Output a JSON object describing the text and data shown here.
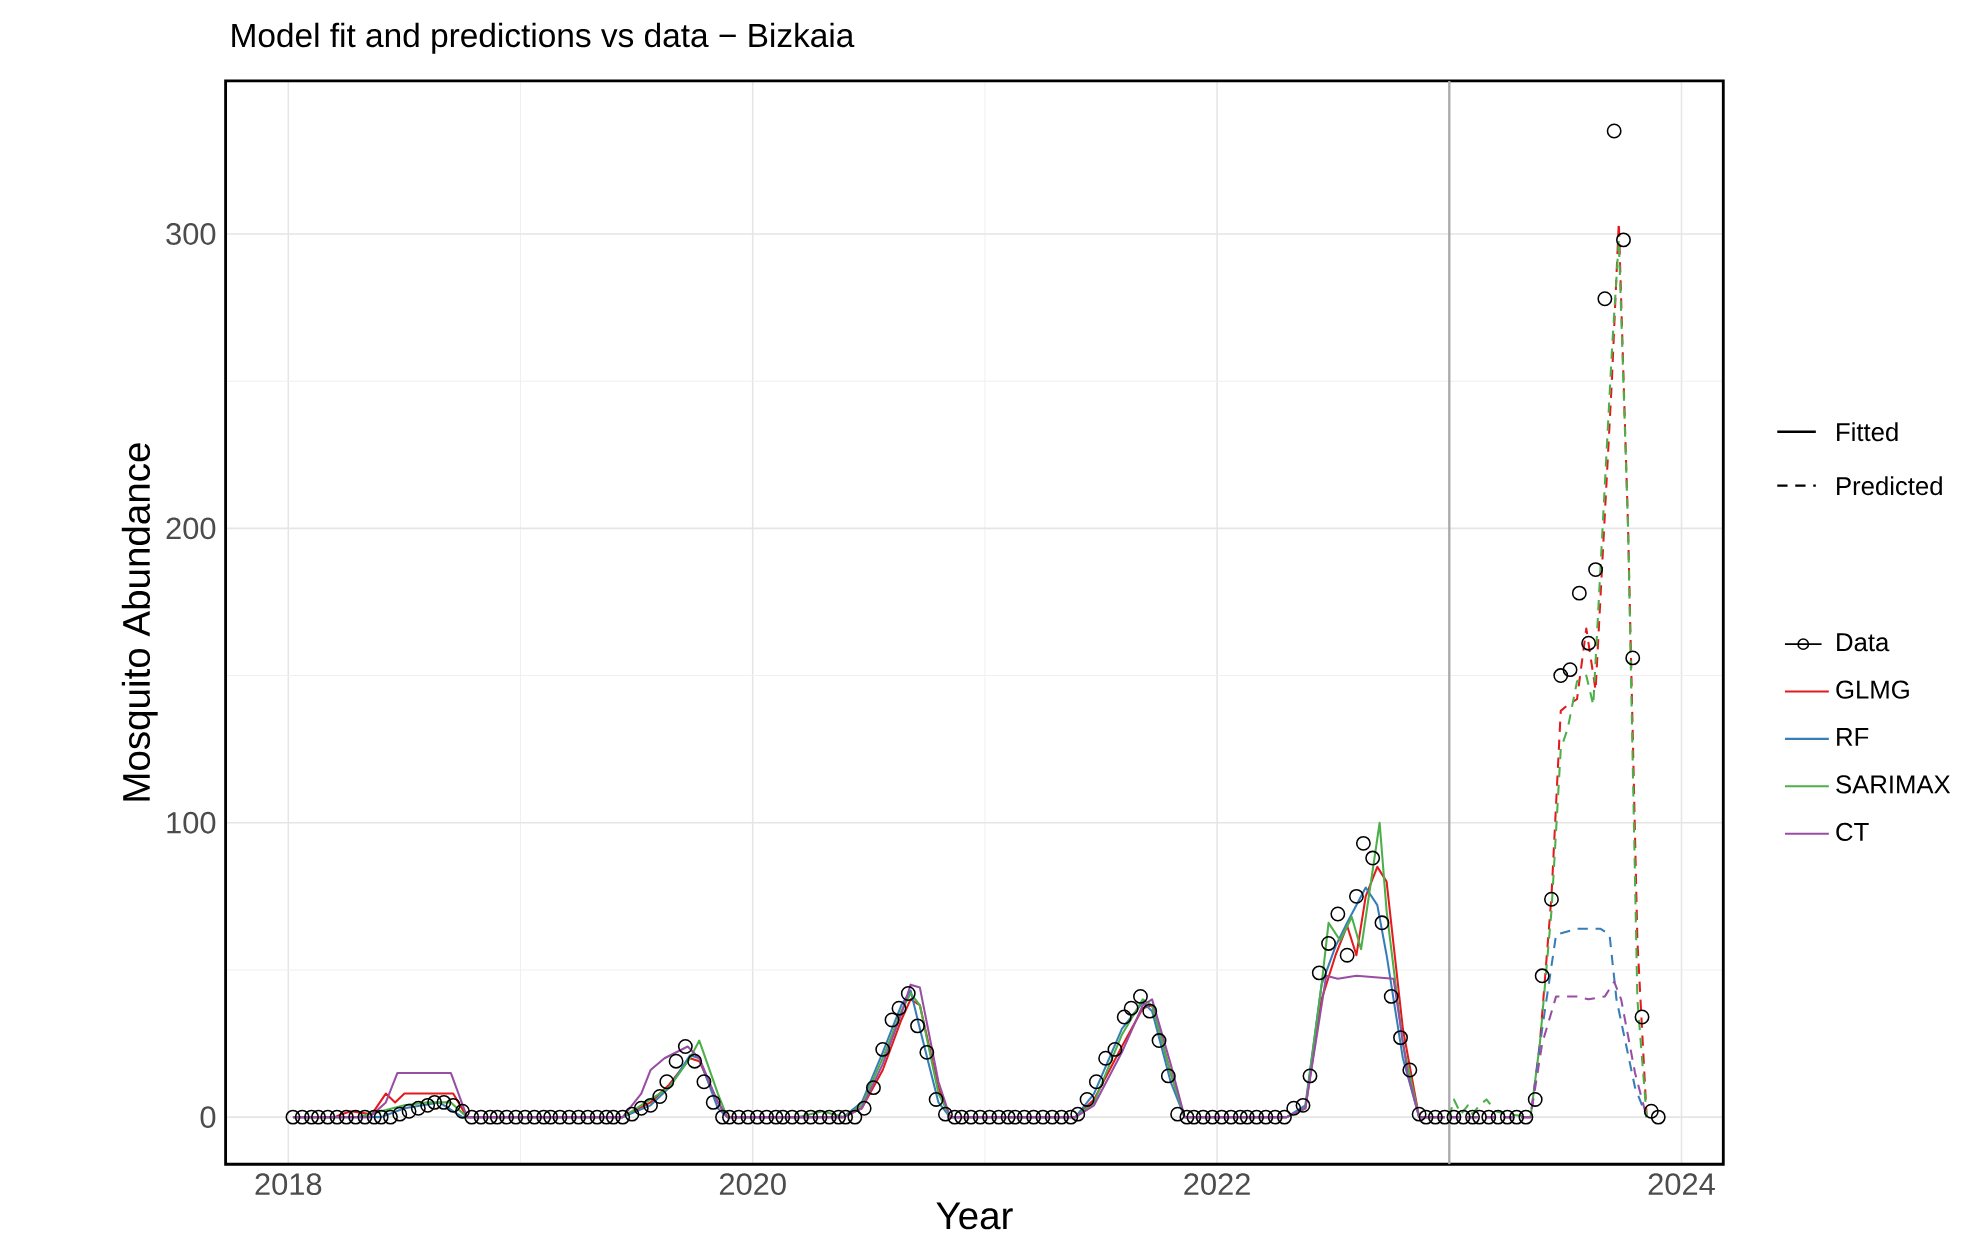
{
  "chart_data": {
    "type": "line",
    "title": "Model fit and predictions vs data − Bizkaia",
    "xlabel": "Year",
    "ylabel": "Mosquito Abundance",
    "xlim": [
      2017.73,
      2024.18
    ],
    "ylim": [
      -16,
      352
    ],
    "xticks": [
      2018,
      2020,
      2022,
      2024
    ],
    "yticks": [
      0,
      100,
      200,
      300
    ],
    "grid": true,
    "legend": "right",
    "annotations": [
      "Fitted",
      "Predicted"
    ],
    "ref_lines": [
      {
        "axis": "x",
        "value": 2023,
        "color": "#aaaaaa"
      }
    ],
    "series": [
      {
        "name": "Data",
        "type": "scatter",
        "marker": "circle",
        "color": "#000000",
        "x": [
          2018.02,
          2018.06,
          2018.1,
          2018.13,
          2018.17,
          2018.21,
          2018.25,
          2018.29,
          2018.33,
          2018.37,
          2018.4,
          2018.44,
          2018.48,
          2018.52,
          2018.56,
          2018.6,
          2018.63,
          2018.67,
          2018.71,
          2018.75,
          2018.79,
          2018.83,
          2018.87,
          2018.9,
          2018.94,
          2018.98,
          2019.02,
          2019.06,
          2019.1,
          2019.13,
          2019.17,
          2019.21,
          2019.25,
          2019.29,
          2019.33,
          2019.37,
          2019.4,
          2019.44,
          2019.48,
          2019.52,
          2019.56,
          2019.6,
          2019.63,
          2019.67,
          2019.71,
          2019.75,
          2019.79,
          2019.83,
          2019.87,
          2019.9,
          2019.94,
          2019.98,
          2020.02,
          2020.06,
          2020.1,
          2020.13,
          2020.17,
          2020.21,
          2020.25,
          2020.29,
          2020.33,
          2020.37,
          2020.4,
          2020.44,
          2020.48,
          2020.52,
          2020.56,
          2020.6,
          2020.63,
          2020.67,
          2020.71,
          2020.75,
          2020.79,
          2020.83,
          2020.87,
          2020.9,
          2020.94,
          2020.98,
          2021.02,
          2021.06,
          2021.1,
          2021.13,
          2021.17,
          2021.21,
          2021.25,
          2021.29,
          2021.33,
          2021.37,
          2021.4,
          2021.44,
          2021.48,
          2021.52,
          2021.56,
          2021.6,
          2021.63,
          2021.67,
          2021.71,
          2021.75,
          2021.79,
          2021.83,
          2021.87,
          2021.9,
          2021.94,
          2021.98,
          2022.02,
          2022.06,
          2022.1,
          2022.13,
          2022.17,
          2022.21,
          2022.25,
          2022.29,
          2022.33,
          2022.37,
          2022.4,
          2022.44,
          2022.48,
          2022.52,
          2022.56,
          2022.6,
          2022.63,
          2022.67,
          2022.71,
          2022.75,
          2022.79,
          2022.83,
          2022.87,
          2022.9,
          2022.94,
          2022.98,
          2023.02,
          2023.06,
          2023.1,
          2023.13,
          2023.17,
          2023.21,
          2023.25,
          2023.29,
          2023.33,
          2023.37,
          2023.4,
          2023.44,
          2023.48,
          2023.52,
          2023.56,
          2023.6,
          2023.63,
          2023.67,
          2023.71,
          2023.75,
          2023.79,
          2023.83,
          2023.87,
          2023.9
        ],
        "values": [
          0,
          0,
          0,
          0,
          0,
          0,
          0,
          0,
          0,
          0,
          0,
          0,
          1,
          2,
          3,
          4,
          5,
          5,
          4,
          2,
          0,
          0,
          0,
          0,
          0,
          0,
          0,
          0,
          0,
          0,
          0,
          0,
          0,
          0,
          0,
          0,
          0,
          0,
          1,
          3,
          4,
          7,
          12,
          19,
          24,
          19,
          12,
          5,
          0,
          0,
          0,
          0,
          0,
          0,
          0,
          0,
          0,
          0,
          0,
          0,
          0,
          0,
          0,
          0,
          3,
          10,
          23,
          33,
          37,
          42,
          31,
          22,
          6,
          1,
          0,
          0,
          0,
          0,
          0,
          0,
          0,
          0,
          0,
          0,
          0,
          0,
          0,
          0,
          1,
          6,
          12,
          20,
          23,
          34,
          37,
          41,
          36,
          26,
          14,
          1,
          0,
          0,
          0,
          0,
          0,
          0,
          0,
          0,
          0,
          0,
          0,
          0,
          3,
          4,
          14,
          49,
          59,
          69,
          55,
          75,
          93,
          88,
          66,
          41,
          27,
          16,
          1,
          0,
          0,
          0,
          0,
          0,
          0,
          0,
          0,
          0,
          0,
          0,
          0,
          6,
          48,
          74,
          150,
          152,
          178,
          161,
          186,
          278,
          335,
          298,
          156,
          34,
          2,
          0
        ]
      },
      {
        "name": "GLMG",
        "line_style": "solid",
        "color": "#e41a1c",
        "x": [
          2018.02,
          2018.2,
          2018.23,
          2018.27,
          2018.36,
          2018.42,
          2018.46,
          2018.5,
          2018.61,
          2018.71,
          2018.77,
          2019.44,
          2019.56,
          2019.64,
          2019.73,
          2019.77,
          2019.85,
          2019.89,
          2020.39,
          2020.47,
          2020.56,
          2020.64,
          2020.68,
          2020.72,
          2020.8,
          2020.85,
          2021.39,
          2021.47,
          2021.59,
          2021.68,
          2021.72,
          2021.8,
          2021.86,
          2022.3,
          2022.38,
          2022.45,
          2022.51,
          2022.56,
          2022.6,
          2022.64,
          2022.69,
          2022.73,
          2022.8,
          2022.87,
          2022.98
        ],
        "values": [
          0,
          0,
          1,
          2,
          1,
          8,
          5,
          8,
          8,
          8,
          0,
          0,
          5,
          11,
          20,
          19,
          5,
          0,
          0,
          3,
          16,
          33,
          40,
          38,
          10,
          0,
          0,
          6,
          24,
          37,
          38,
          15,
          0,
          0,
          3,
          40,
          55,
          65,
          55,
          75,
          85,
          80,
          30,
          0,
          0
        ]
      },
      {
        "name": "RF",
        "line_style": "solid",
        "color": "#377eb8",
        "x": [
          2018.02,
          2018.4,
          2018.5,
          2018.65,
          2018.75,
          2019.44,
          2019.56,
          2019.64,
          2019.73,
          2019.77,
          2019.85,
          2019.89,
          2020.39,
          2020.47,
          2020.56,
          2020.64,
          2020.68,
          2020.72,
          2020.8,
          2020.85,
          2021.39,
          2021.47,
          2021.59,
          2021.68,
          2021.72,
          2021.8,
          2021.86,
          2022.3,
          2022.38,
          2022.45,
          2022.51,
          2022.56,
          2022.64,
          2022.69,
          2022.73,
          2022.8,
          2022.87,
          2022.98
        ],
        "values": [
          0,
          0,
          3,
          5,
          0,
          0,
          4,
          10,
          21,
          20,
          3,
          0,
          0,
          5,
          22,
          38,
          43,
          30,
          5,
          0,
          0,
          8,
          30,
          39,
          36,
          12,
          0,
          0,
          4,
          45,
          58,
          66,
          78,
          72,
          55,
          20,
          0,
          0
        ]
      },
      {
        "name": "SARIMAX",
        "line_style": "solid",
        "color": "#4daf4a",
        "x": [
          2018.02,
          2018.3,
          2018.4,
          2018.5,
          2018.6,
          2018.7,
          2018.77,
          2019.44,
          2019.56,
          2019.64,
          2019.73,
          2019.77,
          2019.85,
          2019.89,
          2020.2,
          2020.3,
          2020.39,
          2020.47,
          2020.56,
          2020.64,
          2020.68,
          2020.72,
          2020.8,
          2020.85,
          2021.39,
          2021.47,
          2021.59,
          2021.68,
          2021.72,
          2021.8,
          2021.86,
          2022.3,
          2022.38,
          2022.45,
          2022.48,
          2022.53,
          2022.58,
          2022.62,
          2022.7,
          2022.73,
          2022.8,
          2022.87,
          2022.98
        ],
        "values": [
          0,
          0,
          2,
          4,
          5,
          5,
          0,
          0,
          6,
          10,
          20,
          26,
          8,
          0,
          0,
          2,
          0,
          4,
          20,
          36,
          42,
          38,
          8,
          0,
          0,
          5,
          28,
          40,
          38,
          15,
          0,
          0,
          3,
          45,
          66,
          60,
          68,
          57,
          100,
          70,
          25,
          0,
          0
        ]
      },
      {
        "name": "CT",
        "line_style": "solid",
        "color": "#984ea3",
        "x": [
          2018.02,
          2018.35,
          2018.42,
          2018.47,
          2018.7,
          2018.77,
          2019.44,
          2019.52,
          2019.56,
          2019.62,
          2019.72,
          2019.77,
          2019.85,
          2019.89,
          2020.39,
          2020.47,
          2020.56,
          2020.64,
          2020.68,
          2020.72,
          2020.8,
          2020.85,
          2021.39,
          2021.47,
          2021.59,
          2021.68,
          2021.72,
          2021.8,
          2021.86,
          2022.3,
          2022.38,
          2022.47,
          2022.52,
          2022.6,
          2022.76,
          2022.82,
          2022.87,
          2022.98
        ],
        "values": [
          0,
          0,
          5,
          15,
          15,
          0,
          0,
          8,
          16,
          20,
          24,
          20,
          5,
          0,
          0,
          3,
          18,
          35,
          45,
          44,
          12,
          0,
          0,
          4,
          22,
          38,
          40,
          18,
          0,
          0,
          3,
          48,
          47,
          48,
          47,
          15,
          0,
          0
        ]
      },
      {
        "line_style": "dashed",
        "color": "#e41a1c",
        "x": [
          2023.0,
          2023.35,
          2023.39,
          2023.44,
          2023.48,
          2023.51,
          2023.55,
          2023.59,
          2023.63,
          2023.7,
          2023.73,
          2023.77,
          2023.81,
          2023.85
        ],
        "values": [
          0,
          0,
          25,
          75,
          138,
          140,
          142,
          166,
          145,
          250,
          304,
          200,
          60,
          0
        ]
      },
      {
        "line_style": "dashed",
        "color": "#377eb8",
        "x": [
          2023.0,
          2023.35,
          2023.4,
          2023.46,
          2023.55,
          2023.65,
          2023.69,
          2023.72,
          2023.8,
          2023.85
        ],
        "values": [
          0,
          0,
          30,
          62,
          64,
          64,
          62,
          40,
          10,
          0
        ]
      },
      {
        "line_style": "dashed",
        "color": "#4daf4a",
        "x": [
          2023.0,
          2023.02,
          2023.05,
          2023.08,
          2023.1,
          2023.13,
          2023.16,
          2023.2,
          2023.25,
          2023.35,
          2023.39,
          2023.44,
          2023.48,
          2023.51,
          2023.55,
          2023.59,
          2023.62,
          2023.7,
          2023.73,
          2023.77,
          2023.81,
          2023.85
        ],
        "values": [
          0,
          6,
          1,
          4,
          1,
          4,
          6,
          2,
          1,
          0,
          25,
          70,
          125,
          132,
          148,
          150,
          140,
          260,
          298,
          200,
          40,
          0
        ]
      },
      {
        "line_style": "dashed",
        "color": "#984ea3",
        "x": [
          2023.0,
          2023.35,
          2023.4,
          2023.46,
          2023.55,
          2023.6,
          2023.67,
          2023.71,
          2023.74,
          2023.8,
          2023.85
        ],
        "values": [
          0,
          0,
          25,
          41,
          41,
          40,
          41,
          46,
          40,
          15,
          0
        ]
      }
    ]
  }
}
